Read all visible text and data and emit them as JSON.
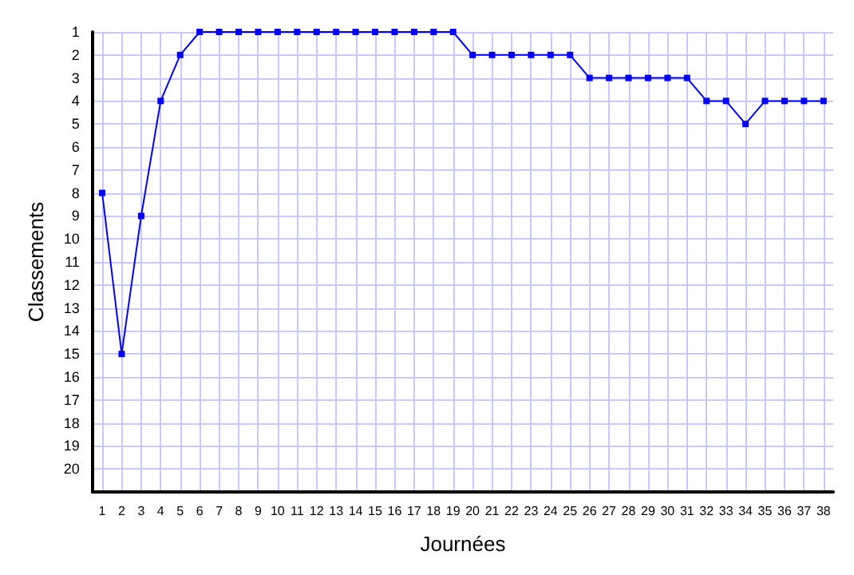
{
  "chart_data": {
    "type": "line",
    "xlabel": "Journées",
    "ylabel": "Classements",
    "x": [
      1,
      2,
      3,
      4,
      5,
      6,
      7,
      8,
      9,
      10,
      11,
      12,
      13,
      14,
      15,
      16,
      17,
      18,
      19,
      20,
      21,
      22,
      23,
      24,
      25,
      26,
      27,
      28,
      29,
      30,
      31,
      32,
      33,
      34,
      35,
      36,
      37,
      38
    ],
    "series": [
      {
        "color": "#0000ff",
        "values": [
          8,
          15,
          9,
          4,
          2,
          1,
          1,
          1,
          1,
          1,
          1,
          1,
          1,
          1,
          1,
          1,
          1,
          1,
          1,
          2,
          2,
          2,
          2,
          2,
          2,
          3,
          3,
          3,
          3,
          3,
          3,
          4,
          4,
          5,
          4,
          4,
          4,
          4
        ]
      }
    ],
    "xlim": [
      0.5,
      38.5
    ],
    "xticks": [
      1,
      2,
      3,
      4,
      5,
      6,
      7,
      8,
      9,
      10,
      11,
      12,
      13,
      14,
      15,
      16,
      17,
      18,
      19,
      20,
      21,
      22,
      23,
      24,
      25,
      26,
      27,
      28,
      29,
      30,
      31,
      32,
      33,
      34,
      35,
      36,
      37,
      38
    ],
    "ylim": [
      21,
      1
    ],
    "yticks": [
      1,
      2,
      3,
      4,
      5,
      6,
      7,
      8,
      9,
      10,
      11,
      12,
      13,
      14,
      15,
      16,
      17,
      18,
      19,
      20
    ],
    "grid": true,
    "marker": "square",
    "line_style": "solid"
  }
}
